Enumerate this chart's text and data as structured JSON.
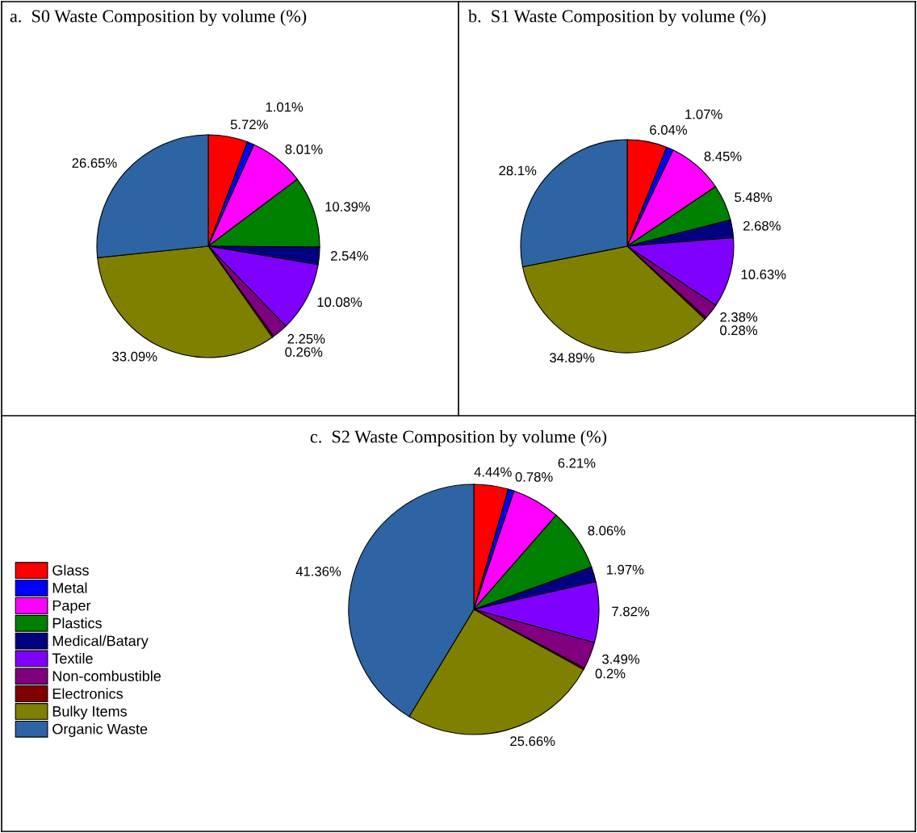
{
  "chart_data": [
    {
      "type": "pie",
      "title": "a.  S0 Waste Composition by volume (%)",
      "categories": [
        null,
        null,
        null,
        null,
        null,
        null,
        null,
        null,
        null,
        null
      ],
      "values": [
        5.72,
        1.01,
        8.01,
        10.39,
        2.54,
        10.08,
        2.25,
        0.26,
        33.09,
        26.65
      ],
      "colors": [
        "#ff0000",
        "#0000ff",
        "#ff00ff",
        "#008000",
        "#000080",
        "#8000ff",
        "#800080",
        "#800000",
        "#808000",
        "#2e64a4"
      ],
      "value_labels": [
        "5.72%",
        "1.01%",
        "8.01%",
        "10.39%",
        "2.54%",
        "10.08%",
        "2.25%",
        "0.26%",
        "33.09%",
        "26.65%"
      ]
    },
    {
      "type": "pie",
      "title": "b.  S1 Waste Composition by volume (%)",
      "categories": [
        null,
        null,
        null,
        null,
        null,
        null,
        null,
        null,
        null,
        null
      ],
      "values": [
        6.04,
        1.07,
        8.45,
        5.48,
        2.68,
        10.63,
        2.38,
        0.28,
        34.89,
        28.1
      ],
      "colors": [
        "#ff0000",
        "#0000ff",
        "#ff00ff",
        "#008000",
        "#000080",
        "#8000ff",
        "#800080",
        "#800000",
        "#808000",
        "#2e64a4"
      ],
      "value_labels": [
        "6.04%",
        "1.07%",
        "8.45%",
        "5.48%",
        "2.68%",
        "10.63%",
        "2.38%",
        "0.28%",
        "34.89%",
        "28.1%"
      ]
    },
    {
      "type": "pie",
      "title": "c.  S2 Waste Composition by volume (%)",
      "categories": [
        "Glass",
        "Metal",
        "Paper",
        "Plastics",
        "Medical/Batary",
        "Textile",
        "Non-combustible",
        "Electronics",
        "Bulky Items",
        "Organic Waste"
      ],
      "values": [
        4.44,
        0.78,
        6.21,
        8.06,
        1.97,
        7.82,
        3.49,
        0.2,
        25.66,
        41.36
      ],
      "colors": [
        "#ff0000",
        "#0000ff",
        "#ff00ff",
        "#008000",
        "#000080",
        "#8000ff",
        "#800080",
        "#800000",
        "#808000",
        "#2e64a4"
      ],
      "value_labels": [
        "4.44%",
        "0.78%",
        "6.21%",
        "8.06%",
        "1.97%",
        "7.82%",
        "3.49%",
        "0.2%",
        "25.66%",
        "41.36%"
      ],
      "legend": "left"
    }
  ]
}
